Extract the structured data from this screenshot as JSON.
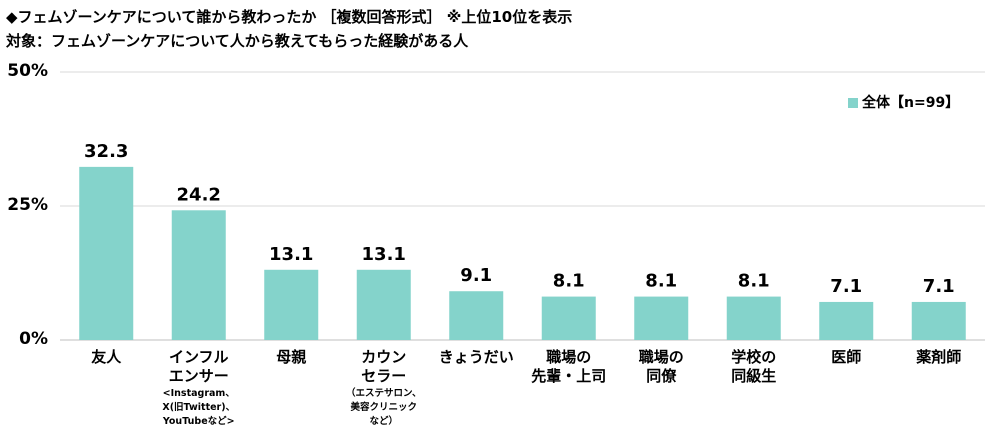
{
  "chart_data": {
    "type": "bar",
    "title": "◆フェムゾーンケアについて誰から教わったか ［複数回答形式］ ※上位10位を表示",
    "subtitle": "対象：フェムゾーンケアについて人から教えてもらった経験がある人",
    "categories": [
      {
        "lines": [
          "友人"
        ],
        "sub": []
      },
      {
        "lines": [
          "インフル",
          "エンサー"
        ],
        "sub": [
          "<Instagram、",
          "X(旧Twitter)、",
          "YouTubeなど>"
        ]
      },
      {
        "lines": [
          "母親"
        ],
        "sub": []
      },
      {
        "lines": [
          "カウン",
          "セラー"
        ],
        "sub": [
          "（エステサロン、",
          "美容クリニック",
          "など）"
        ]
      },
      {
        "lines": [
          "きょうだい"
        ],
        "sub": []
      },
      {
        "lines": [
          "職場の",
          "先輩・上司"
        ],
        "sub": []
      },
      {
        "lines": [
          "職場の",
          "同僚"
        ],
        "sub": []
      },
      {
        "lines": [
          "学校の",
          "同級生"
        ],
        "sub": []
      },
      {
        "lines": [
          "医師"
        ],
        "sub": []
      },
      {
        "lines": [
          "薬剤師"
        ],
        "sub": []
      }
    ],
    "series": [
      {
        "name": "全体【n=99】",
        "values": [
          32.3,
          24.2,
          13.1,
          13.1,
          9.1,
          8.1,
          8.1,
          8.1,
          7.1,
          7.1
        ],
        "color": "#84d3cb"
      }
    ],
    "value_labels": [
      "32.3",
      "24.2",
      "13.1",
      "13.1",
      "9.1",
      "8.1",
      "8.1",
      "8.1",
      "7.1",
      "7.1"
    ],
    "ylim": [
      0,
      50
    ],
    "yticks": [
      {
        "value": 0,
        "label": "0%"
      },
      {
        "value": 25,
        "label": "25%"
      },
      {
        "value": 50,
        "label": "50%"
      }
    ],
    "grid": true,
    "legend": "top-right",
    "colors": {
      "bar": "#84d3cb",
      "grid": "#d9d9d9",
      "axis": "#bfbfbf"
    }
  }
}
